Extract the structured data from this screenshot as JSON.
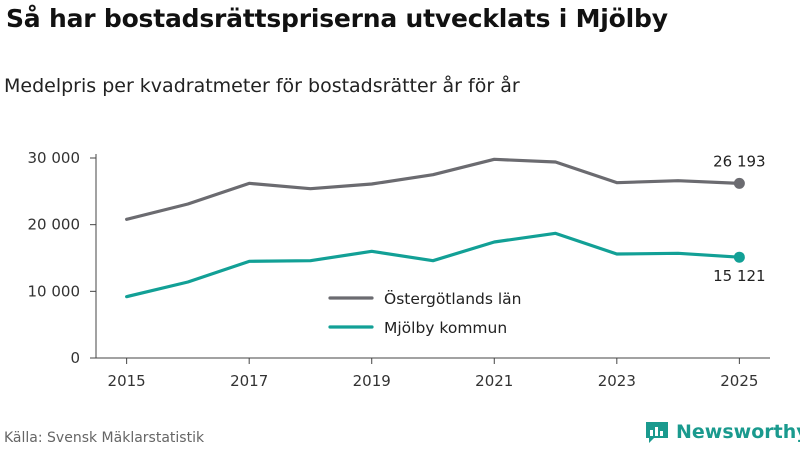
{
  "title": "Så har bostadsrättspriserna utvecklats i Mjölby",
  "subtitle": "Medelpris per kvadratmeter för bostadsrätter år för år",
  "source": "Källa: Svensk Mäklarstatistik",
  "brand": "Newsworthy",
  "chart_data": {
    "type": "line",
    "title": "Så har bostadsrättspriserna utvecklats i Mjölby",
    "subtitle": "Medelpris per kvadratmeter för bostadsrätter år för år",
    "xlabel": "",
    "ylabel": "",
    "x": [
      2015,
      2016,
      2017,
      2018,
      2019,
      2020,
      2021,
      2022,
      2023,
      2024,
      2025
    ],
    "x_ticks": [
      2015,
      2017,
      2019,
      2021,
      2023,
      2025
    ],
    "x_tick_labels": [
      "2015",
      "2017",
      "2019",
      "2021",
      "2023",
      "2025"
    ],
    "xlim": [
      2014.5,
      2025.5
    ],
    "ylim": [
      0,
      30000
    ],
    "y_ticks": [
      0,
      10000,
      20000,
      30000
    ],
    "y_tick_labels": [
      "0",
      "10 000",
      "20 000",
      "30 000"
    ],
    "grid": false,
    "legend_position": "center",
    "series": [
      {
        "name": "Östergötlands län",
        "color": "#6b6b70",
        "values": [
          20800,
          23100,
          26200,
          25400,
          26100,
          27500,
          29800,
          29400,
          26300,
          26600,
          26193
        ],
        "end_label": "26 193"
      },
      {
        "name": "Mjölby kommun",
        "color": "#12a096",
        "values": [
          9200,
          11400,
          14500,
          14600,
          16000,
          14600,
          17400,
          18700,
          15600,
          15700,
          15121
        ],
        "end_label": "15 121"
      }
    ]
  }
}
